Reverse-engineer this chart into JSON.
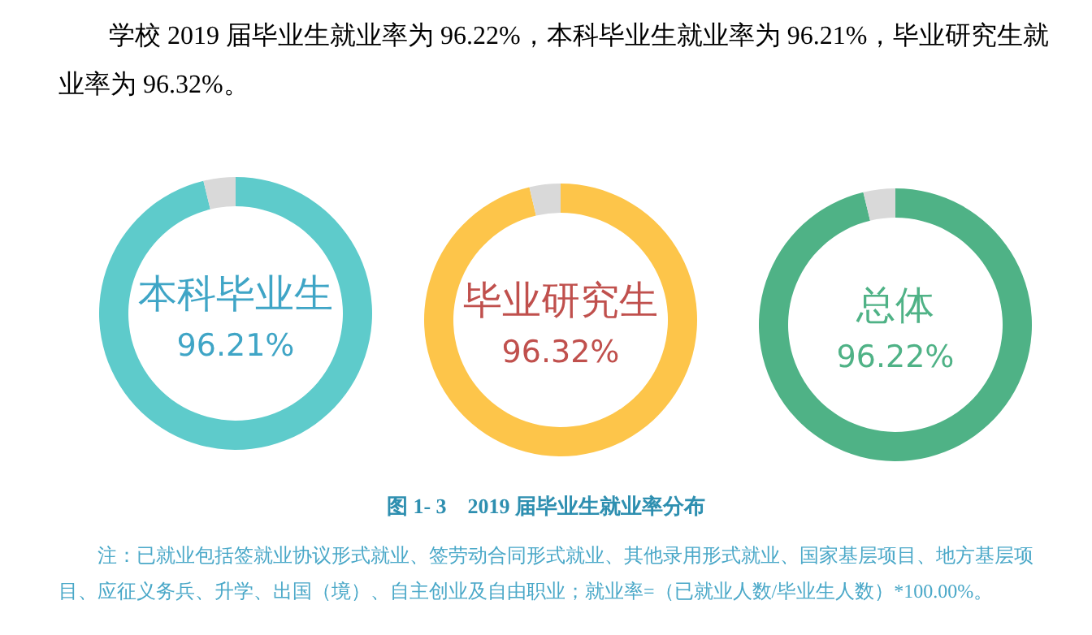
{
  "chart_data": [
    {
      "type": "donut",
      "categories": [
        "本科毕业生",
        null
      ],
      "values": [
        96.21,
        3.79
      ],
      "colors": [
        "#5ecbcb",
        "#d9d9d9"
      ],
      "value_labels": [
        "96.21%",
        null
      ]
    },
    {
      "type": "donut",
      "categories": [
        "毕业研究生",
        null
      ],
      "values": [
        96.32,
        3.68
      ],
      "colors": [
        "#fdc54a",
        "#d9d9d9"
      ],
      "value_labels": [
        "96.32%",
        null
      ]
    },
    {
      "type": "donut",
      "categories": [
        "总体",
        null
      ],
      "values": [
        96.22,
        3.78
      ],
      "colors": [
        "#4fb286",
        "#d9d9d9"
      ],
      "value_labels": [
        "96.22%",
        null
      ]
    },
    {
      "type": "other",
      "annotations": [
        "学校 2019 届毕业生就业率为 96.22%，本科毕业生就业率为 96.21%，毕业研究生就业率为 96.32%。",
        "图 1- 3　2019 届毕业生就业率分布",
        "注：已就业包括签就业协议形式就业、签劳动合同形式就业、其他录用形式就业、国家基层项目、地方基层项目、应征义务兵、升学、出国（境）、自主创业及自由职业；就业率=（已就业人数/毕业生人数）*100.00%。"
      ]
    }
  ]
}
